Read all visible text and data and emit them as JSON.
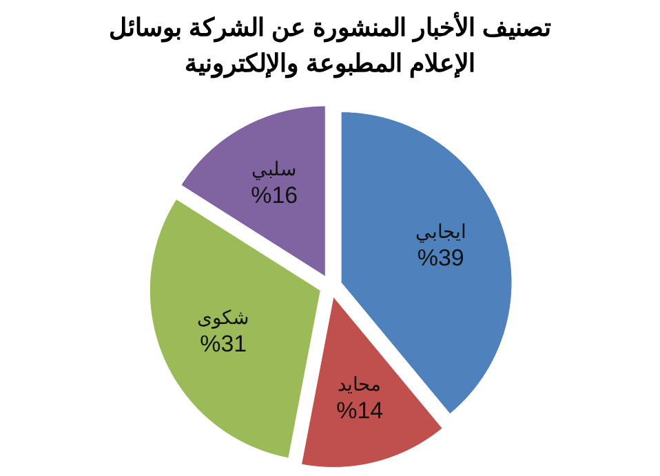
{
  "chart_data": {
    "type": "pie",
    "title": "تصنيف الأخبار المنشورة عن الشركة بوسائل الإعلام المطبوعة والإلكترونية",
    "categories": [
      "ايجابي",
      "محايد",
      "شكوى",
      "سلبي"
    ],
    "values": [
      39,
      14,
      31,
      16
    ],
    "value_labels": [
      "%39",
      "%14",
      "%31",
      "%16"
    ],
    "colors": [
      "#4f81bd",
      "#c0504d",
      "#9bbb59",
      "#8064a2"
    ],
    "legend": false
  }
}
